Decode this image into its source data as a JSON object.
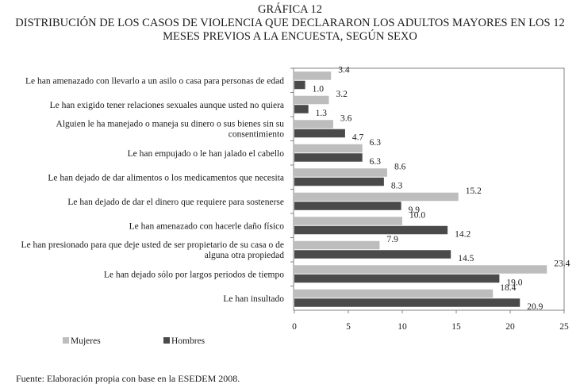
{
  "title_lines": [
    "GRÁFICA 12",
    "DISTRIBUCIÓN DE LOS CASOS DE VIOLENCIA QUE DECLARARON LOS ADULTOS MAYORES EN LOS 12",
    "MESES PREVIOS A LA ENCUESTA, SEGÚN SEXO"
  ],
  "source": "Fuente: Elaboración propia con base en la ESEDEM 2008.",
  "colors": {
    "mujeres": "#bdbdbd",
    "hombres": "#4a4a4a",
    "axis": "#808080"
  },
  "chart_data": {
    "type": "bar",
    "orientation": "horizontal",
    "categories": [
      [
        "Le han amenazado con llevarlo a un asilo o casa para personas de edad"
      ],
      [
        "Le han exigido tener relaciones sexuales aunque usted no quiera"
      ],
      [
        "Alguien le ha manejado o maneja su dinero o sus bienes sin su",
        "consentimiento"
      ],
      [
        "Le han empujado o le han jalado el cabello"
      ],
      [
        "Le han dejado de dar alimentos o los medicamentos que necesita"
      ],
      [
        "Le han dejado de dar el dinero que requiere para sostenerse"
      ],
      [
        "Le han amenazado con hacerle daño físico"
      ],
      [
        "Le han presionado para que deje usted de ser propietario de su casa o de",
        "alguna otra propiedad"
      ],
      [
        "Le han dejado sólo por largos periodos de tiempo"
      ],
      [
        "Le han insultado"
      ]
    ],
    "series": [
      {
        "name": "Mujeres",
        "values": [
          3.4,
          3.2,
          3.6,
          6.3,
          8.6,
          15.2,
          10.0,
          7.9,
          23.4,
          18.4
        ],
        "labels": [
          "3.4",
          "3.2",
          "3.6",
          "6.3",
          "8.6",
          "15.2",
          "10.0",
          "7.9",
          "23.4",
          "18.4"
        ]
      },
      {
        "name": "Hombres",
        "values": [
          1.0,
          1.3,
          4.7,
          6.3,
          8.3,
          9.9,
          14.2,
          14.5,
          19.0,
          20.9
        ],
        "labels": [
          "1.0",
          "1.3",
          "4.7",
          "6.3",
          "8.3",
          "9.9",
          "14.2",
          "14.5",
          "19.0",
          "20.9"
        ]
      }
    ],
    "xlim": [
      0,
      25
    ],
    "xticks": [
      "0",
      "5",
      "10",
      "15",
      "20",
      "25"
    ],
    "grid": false,
    "legend": "bottom-left"
  }
}
